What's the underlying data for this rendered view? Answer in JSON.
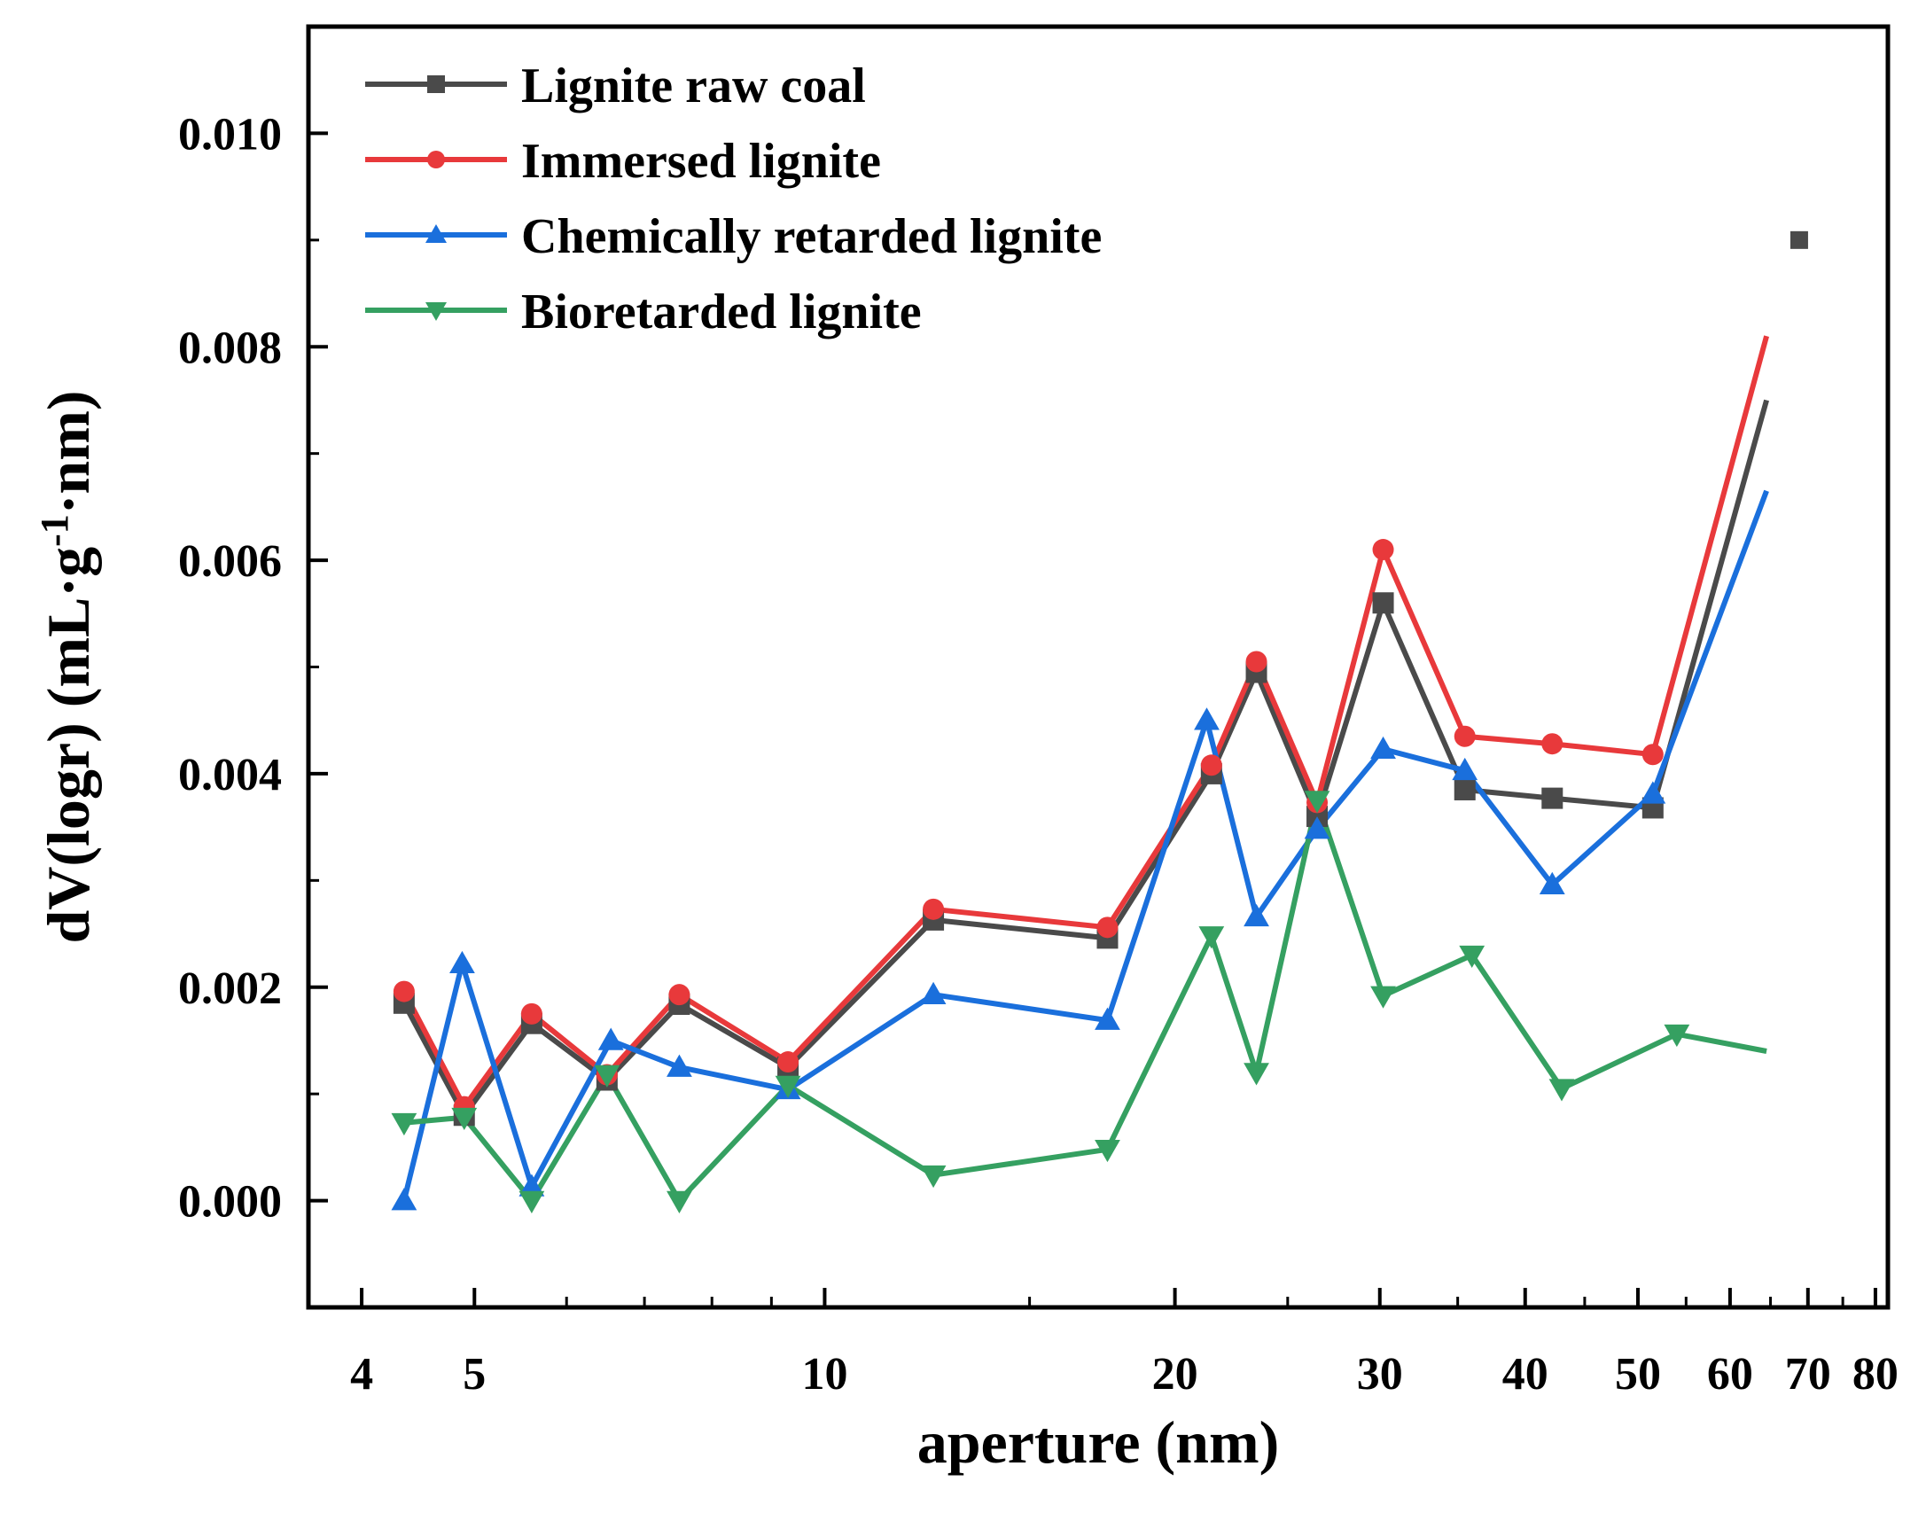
{
  "chart_data": {
    "type": "line",
    "xscale": "log",
    "xlabel": "aperture (nm)",
    "ylabel_main": "dV(logr) (mL·g",
    "ylabel_sup": "-1",
    "ylabel_tail": "·nm)",
    "xlim": [
      3.6,
      82
    ],
    "ylim": [
      -0.001,
      0.011
    ],
    "xticks": [
      4,
      5,
      10,
      20,
      30,
      40,
      50,
      60,
      70,
      80
    ],
    "xtick_labels": [
      "4",
      "5",
      "10",
      "20",
      "30",
      "40",
      "50",
      "60",
      "70",
      "80"
    ],
    "yticks": [
      0.0,
      0.002,
      0.004,
      0.006,
      0.008,
      0.01
    ],
    "ytick_labels": [
      "0.000",
      "0.002",
      "0.004",
      "0.006",
      "0.008",
      "0.010"
    ],
    "legend_position": "top-left",
    "series": [
      {
        "name": "Lignite raw coal",
        "color": "#4a4a4a",
        "marker": "square",
        "x": [
          4.35,
          4.9,
          5.6,
          6.5,
          7.5,
          9.3,
          12.4,
          17.5,
          21.5,
          23.5,
          26.5,
          30.2,
          35.5,
          42.2,
          51.5,
          64.5
        ],
        "y": [
          0.00185,
          0.0008,
          0.00166,
          0.00113,
          0.00184,
          0.00125,
          0.00263,
          0.00246,
          0.004,
          0.00495,
          0.0036,
          0.0056,
          0.00385,
          0.00377,
          0.00368,
          0.0075
        ]
      },
      {
        "name": "Immersed lignite",
        "color": "#e8393b",
        "marker": "circle",
        "x": [
          4.35,
          4.9,
          5.6,
          6.5,
          7.5,
          9.3,
          12.4,
          17.5,
          21.5,
          23.5,
          26.5,
          30.2,
          35.5,
          42.2,
          51.5,
          64.5
        ],
        "y": [
          0.00196,
          0.00088,
          0.00175,
          0.00118,
          0.00193,
          0.0013,
          0.00273,
          0.00256,
          0.00408,
          0.00505,
          0.00373,
          0.0061,
          0.00435,
          0.00428,
          0.00418,
          0.0081
        ]
      },
      {
        "name": "Chemically retarded lignite",
        "color": "#1a6fdc",
        "marker": "triangle-up",
        "x": [
          4.35,
          4.88,
          5.6,
          6.55,
          7.5,
          9.3,
          12.4,
          17.5,
          21.3,
          23.5,
          26.5,
          30.2,
          35.5,
          42.2,
          51.5,
          64.5
        ],
        "y": [
          0.0,
          0.00222,
          0.00013,
          0.0015,
          0.00125,
          0.00104,
          0.00193,
          0.00169,
          0.0045,
          0.00266,
          0.00348,
          0.00423,
          0.00403,
          0.00296,
          0.00381,
          0.00665
        ]
      },
      {
        "name": "Bioretarded lignite",
        "color": "#35a061",
        "marker": "triangle-down",
        "x": [
          4.35,
          4.9,
          5.6,
          6.5,
          7.5,
          9.3,
          12.4,
          17.5,
          21.5,
          23.5,
          26.5,
          30.2,
          36,
          43,
          54,
          64.5
        ],
        "y": [
          0.00073,
          0.00078,
          0.0,
          0.00118,
          0.0,
          0.00108,
          0.00024,
          0.00048,
          0.00248,
          0.0012,
          0.00375,
          0.00192,
          0.0023,
          0.00105,
          0.00156,
          0.0014
        ]
      }
    ],
    "extra_points": [
      {
        "series": "Lignite raw coal",
        "x": 68.8,
        "y": 0.009
      }
    ]
  }
}
